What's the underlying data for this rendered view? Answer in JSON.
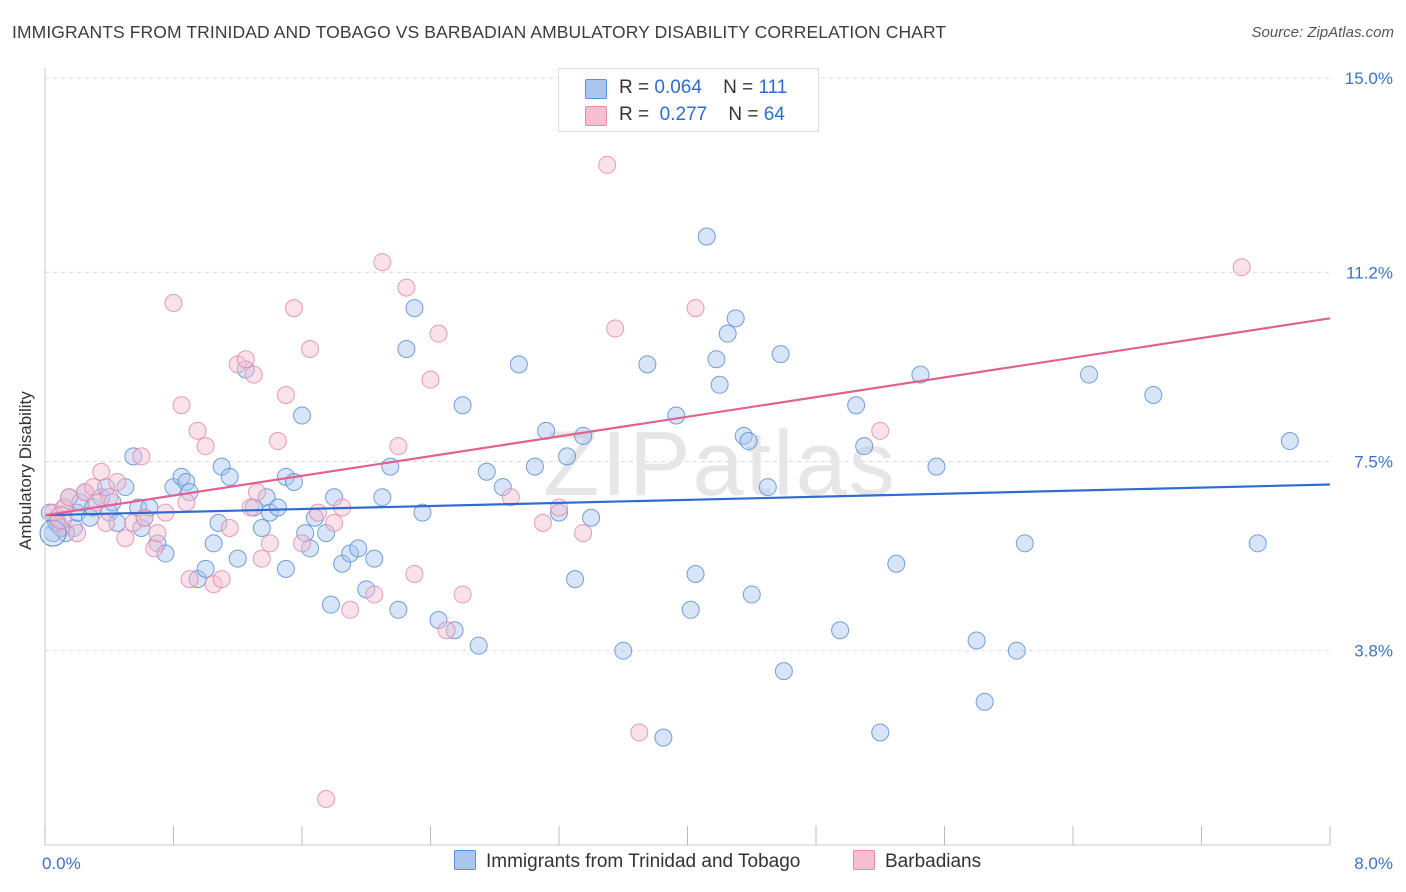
{
  "title": "IMMIGRANTS FROM TRINIDAD AND TOBAGO VS BARBADIAN AMBULATORY DISABILITY CORRELATION CHART",
  "source": "Source: ZipAtlas.com",
  "watermark": "ZIPatlas",
  "colors": {
    "blue_fill": "#a9c6ef",
    "blue_stroke": "#5b8fd6",
    "blue_line": "#2f6bd0",
    "pink_fill": "#f6bfd1",
    "pink_stroke": "#e58aa8",
    "pink_line": "#e0628f",
    "axis_text": "#3b72c8",
    "grid": "#d9d9d9"
  },
  "legend": {
    "rows": [
      {
        "r_label": "R =",
        "r_value": "0.064",
        "n_label": "N =",
        "n_value": "111"
      },
      {
        "r_label": "R =",
        "r_value": "0.277",
        "n_label": "N =",
        "n_value": "64"
      }
    ]
  },
  "bottom_legend": {
    "series1": "Immigrants from Trinidad and Tobago",
    "series2": "Barbadians"
  },
  "chart_data": {
    "type": "scatter",
    "ylabel": "Ambulatory Disability",
    "xlim": [
      0,
      8
    ],
    "ylim": [
      0,
      15
    ],
    "y_ticks": [
      3.8,
      7.5,
      11.2,
      15.0
    ],
    "y_tick_labels": [
      "3.8%",
      "7.5%",
      "11.2%",
      "15.0%"
    ],
    "x_tick_labels": [
      "0.0%",
      "8.0%"
    ],
    "grid": "horizontal dashed",
    "series": [
      {
        "name": "Immigrants from Trinidad and Tobago",
        "r": 0.064,
        "n": 111,
        "trend": [
          [
            0,
            6.45
          ],
          [
            8,
            7.05
          ]
        ],
        "points": [
          [
            0.05,
            6.1
          ],
          [
            0.08,
            6.3
          ],
          [
            0.1,
            6.2
          ],
          [
            0.12,
            6.6
          ],
          [
            0.15,
            6.8
          ],
          [
            0.18,
            6.2
          ],
          [
            0.2,
            6.5
          ],
          [
            0.22,
            6.7
          ],
          [
            0.25,
            6.9
          ],
          [
            0.28,
            6.4
          ],
          [
            0.3,
            6.6
          ],
          [
            0.35,
            6.8
          ],
          [
            0.38,
            7.0
          ],
          [
            0.4,
            6.5
          ],
          [
            0.42,
            6.7
          ],
          [
            0.45,
            6.3
          ],
          [
            0.5,
            7.0
          ],
          [
            0.55,
            7.6
          ],
          [
            0.58,
            6.6
          ],
          [
            0.6,
            6.2
          ],
          [
            0.62,
            6.4
          ],
          [
            0.65,
            6.6
          ],
          [
            0.7,
            5.9
          ],
          [
            0.75,
            5.7
          ],
          [
            0.8,
            7.0
          ],
          [
            0.85,
            7.2
          ],
          [
            0.88,
            7.1
          ],
          [
            0.9,
            6.9
          ],
          [
            0.95,
            5.2
          ],
          [
            1.0,
            5.4
          ],
          [
            1.05,
            5.9
          ],
          [
            1.08,
            6.3
          ],
          [
            1.1,
            7.4
          ],
          [
            1.15,
            7.2
          ],
          [
            1.2,
            5.6
          ],
          [
            1.25,
            9.3
          ],
          [
            1.3,
            6.6
          ],
          [
            1.35,
            6.2
          ],
          [
            1.38,
            6.8
          ],
          [
            1.4,
            6.5
          ],
          [
            1.45,
            6.6
          ],
          [
            1.5,
            7.2
          ],
          [
            1.5,
            5.4
          ],
          [
            1.55,
            7.1
          ],
          [
            1.6,
            8.4
          ],
          [
            1.62,
            6.1
          ],
          [
            1.65,
            5.8
          ],
          [
            1.68,
            6.4
          ],
          [
            1.75,
            6.1
          ],
          [
            1.78,
            4.7
          ],
          [
            1.8,
            6.8
          ],
          [
            1.85,
            5.5
          ],
          [
            1.9,
            5.7
          ],
          [
            1.95,
            5.8
          ],
          [
            2.0,
            5.0
          ],
          [
            2.05,
            5.6
          ],
          [
            2.1,
            6.8
          ],
          [
            2.15,
            7.4
          ],
          [
            2.2,
            4.6
          ],
          [
            2.25,
            9.7
          ],
          [
            2.3,
            10.5
          ],
          [
            2.35,
            6.5
          ],
          [
            2.45,
            4.4
          ],
          [
            2.55,
            4.2
          ],
          [
            2.6,
            8.6
          ],
          [
            2.7,
            3.9
          ],
          [
            2.75,
            7.3
          ],
          [
            2.85,
            7.0
          ],
          [
            2.95,
            9.4
          ],
          [
            3.05,
            7.4
          ],
          [
            3.12,
            8.1
          ],
          [
            3.2,
            6.5
          ],
          [
            3.25,
            7.6
          ],
          [
            3.3,
            5.2
          ],
          [
            3.35,
            8.0
          ],
          [
            3.4,
            6.4
          ],
          [
            3.6,
            3.8
          ],
          [
            3.75,
            9.4
          ],
          [
            3.85,
            2.1
          ],
          [
            3.93,
            8.4
          ],
          [
            4.02,
            4.6
          ],
          [
            4.05,
            5.3
          ],
          [
            4.12,
            11.9
          ],
          [
            4.18,
            9.5
          ],
          [
            4.2,
            9.0
          ],
          [
            4.25,
            10.0
          ],
          [
            4.3,
            10.3
          ],
          [
            4.35,
            8.0
          ],
          [
            4.38,
            7.9
          ],
          [
            4.4,
            4.9
          ],
          [
            4.5,
            7.0
          ],
          [
            4.58,
            9.6
          ],
          [
            4.6,
            3.4
          ],
          [
            4.95,
            4.2
          ],
          [
            5.05,
            8.6
          ],
          [
            5.1,
            7.8
          ],
          [
            5.2,
            2.2
          ],
          [
            5.3,
            5.5
          ],
          [
            5.45,
            9.2
          ],
          [
            5.55,
            7.4
          ],
          [
            5.8,
            4.0
          ],
          [
            5.85,
            2.8
          ],
          [
            6.05,
            3.8
          ],
          [
            6.1,
            5.9
          ],
          [
            6.5,
            9.2
          ],
          [
            6.9,
            8.8
          ],
          [
            7.55,
            5.9
          ],
          [
            7.75,
            7.9
          ],
          [
            0.03,
            6.5
          ],
          [
            0.07,
            6.3
          ],
          [
            0.13,
            6.1
          ]
        ]
      },
      {
        "name": "Barbadians",
        "r": 0.277,
        "n": 64,
        "trend": [
          [
            0,
            6.45
          ],
          [
            8,
            10.3
          ]
        ],
        "points": [
          [
            0.05,
            6.5
          ],
          [
            0.1,
            6.2
          ],
          [
            0.12,
            6.6
          ],
          [
            0.15,
            6.8
          ],
          [
            0.2,
            6.1
          ],
          [
            0.25,
            6.9
          ],
          [
            0.3,
            7.0
          ],
          [
            0.32,
            6.7
          ],
          [
            0.35,
            7.3
          ],
          [
            0.38,
            6.3
          ],
          [
            0.4,
            6.8
          ],
          [
            0.45,
            7.1
          ],
          [
            0.5,
            6.0
          ],
          [
            0.55,
            6.3
          ],
          [
            0.6,
            7.6
          ],
          [
            0.62,
            6.4
          ],
          [
            0.68,
            5.8
          ],
          [
            0.7,
            6.1
          ],
          [
            0.75,
            6.5
          ],
          [
            0.8,
            10.6
          ],
          [
            0.85,
            8.6
          ],
          [
            0.88,
            6.7
          ],
          [
            0.9,
            5.2
          ],
          [
            0.95,
            8.1
          ],
          [
            1.0,
            7.8
          ],
          [
            1.05,
            5.1
          ],
          [
            1.1,
            5.2
          ],
          [
            1.15,
            6.2
          ],
          [
            1.2,
            9.4
          ],
          [
            1.25,
            9.5
          ],
          [
            1.28,
            6.6
          ],
          [
            1.3,
            9.2
          ],
          [
            1.32,
            6.9
          ],
          [
            1.35,
            5.6
          ],
          [
            1.4,
            5.9
          ],
          [
            1.45,
            7.9
          ],
          [
            1.5,
            8.8
          ],
          [
            1.55,
            10.5
          ],
          [
            1.6,
            5.9
          ],
          [
            1.65,
            9.7
          ],
          [
            1.7,
            6.5
          ],
          [
            1.75,
            0.9
          ],
          [
            1.8,
            6.3
          ],
          [
            1.85,
            6.6
          ],
          [
            1.9,
            4.6
          ],
          [
            2.05,
            4.9
          ],
          [
            2.1,
            11.4
          ],
          [
            2.2,
            7.8
          ],
          [
            2.25,
            10.9
          ],
          [
            2.3,
            5.3
          ],
          [
            2.4,
            9.1
          ],
          [
            2.45,
            10.0
          ],
          [
            2.5,
            4.2
          ],
          [
            2.6,
            4.9
          ],
          [
            2.9,
            6.8
          ],
          [
            3.1,
            6.3
          ],
          [
            3.2,
            6.6
          ],
          [
            3.35,
            6.1
          ],
          [
            3.5,
            13.3
          ],
          [
            3.55,
            10.1
          ],
          [
            3.7,
            2.2
          ],
          [
            4.05,
            10.5
          ],
          [
            5.2,
            8.1
          ],
          [
            7.45,
            11.3
          ]
        ]
      }
    ]
  }
}
